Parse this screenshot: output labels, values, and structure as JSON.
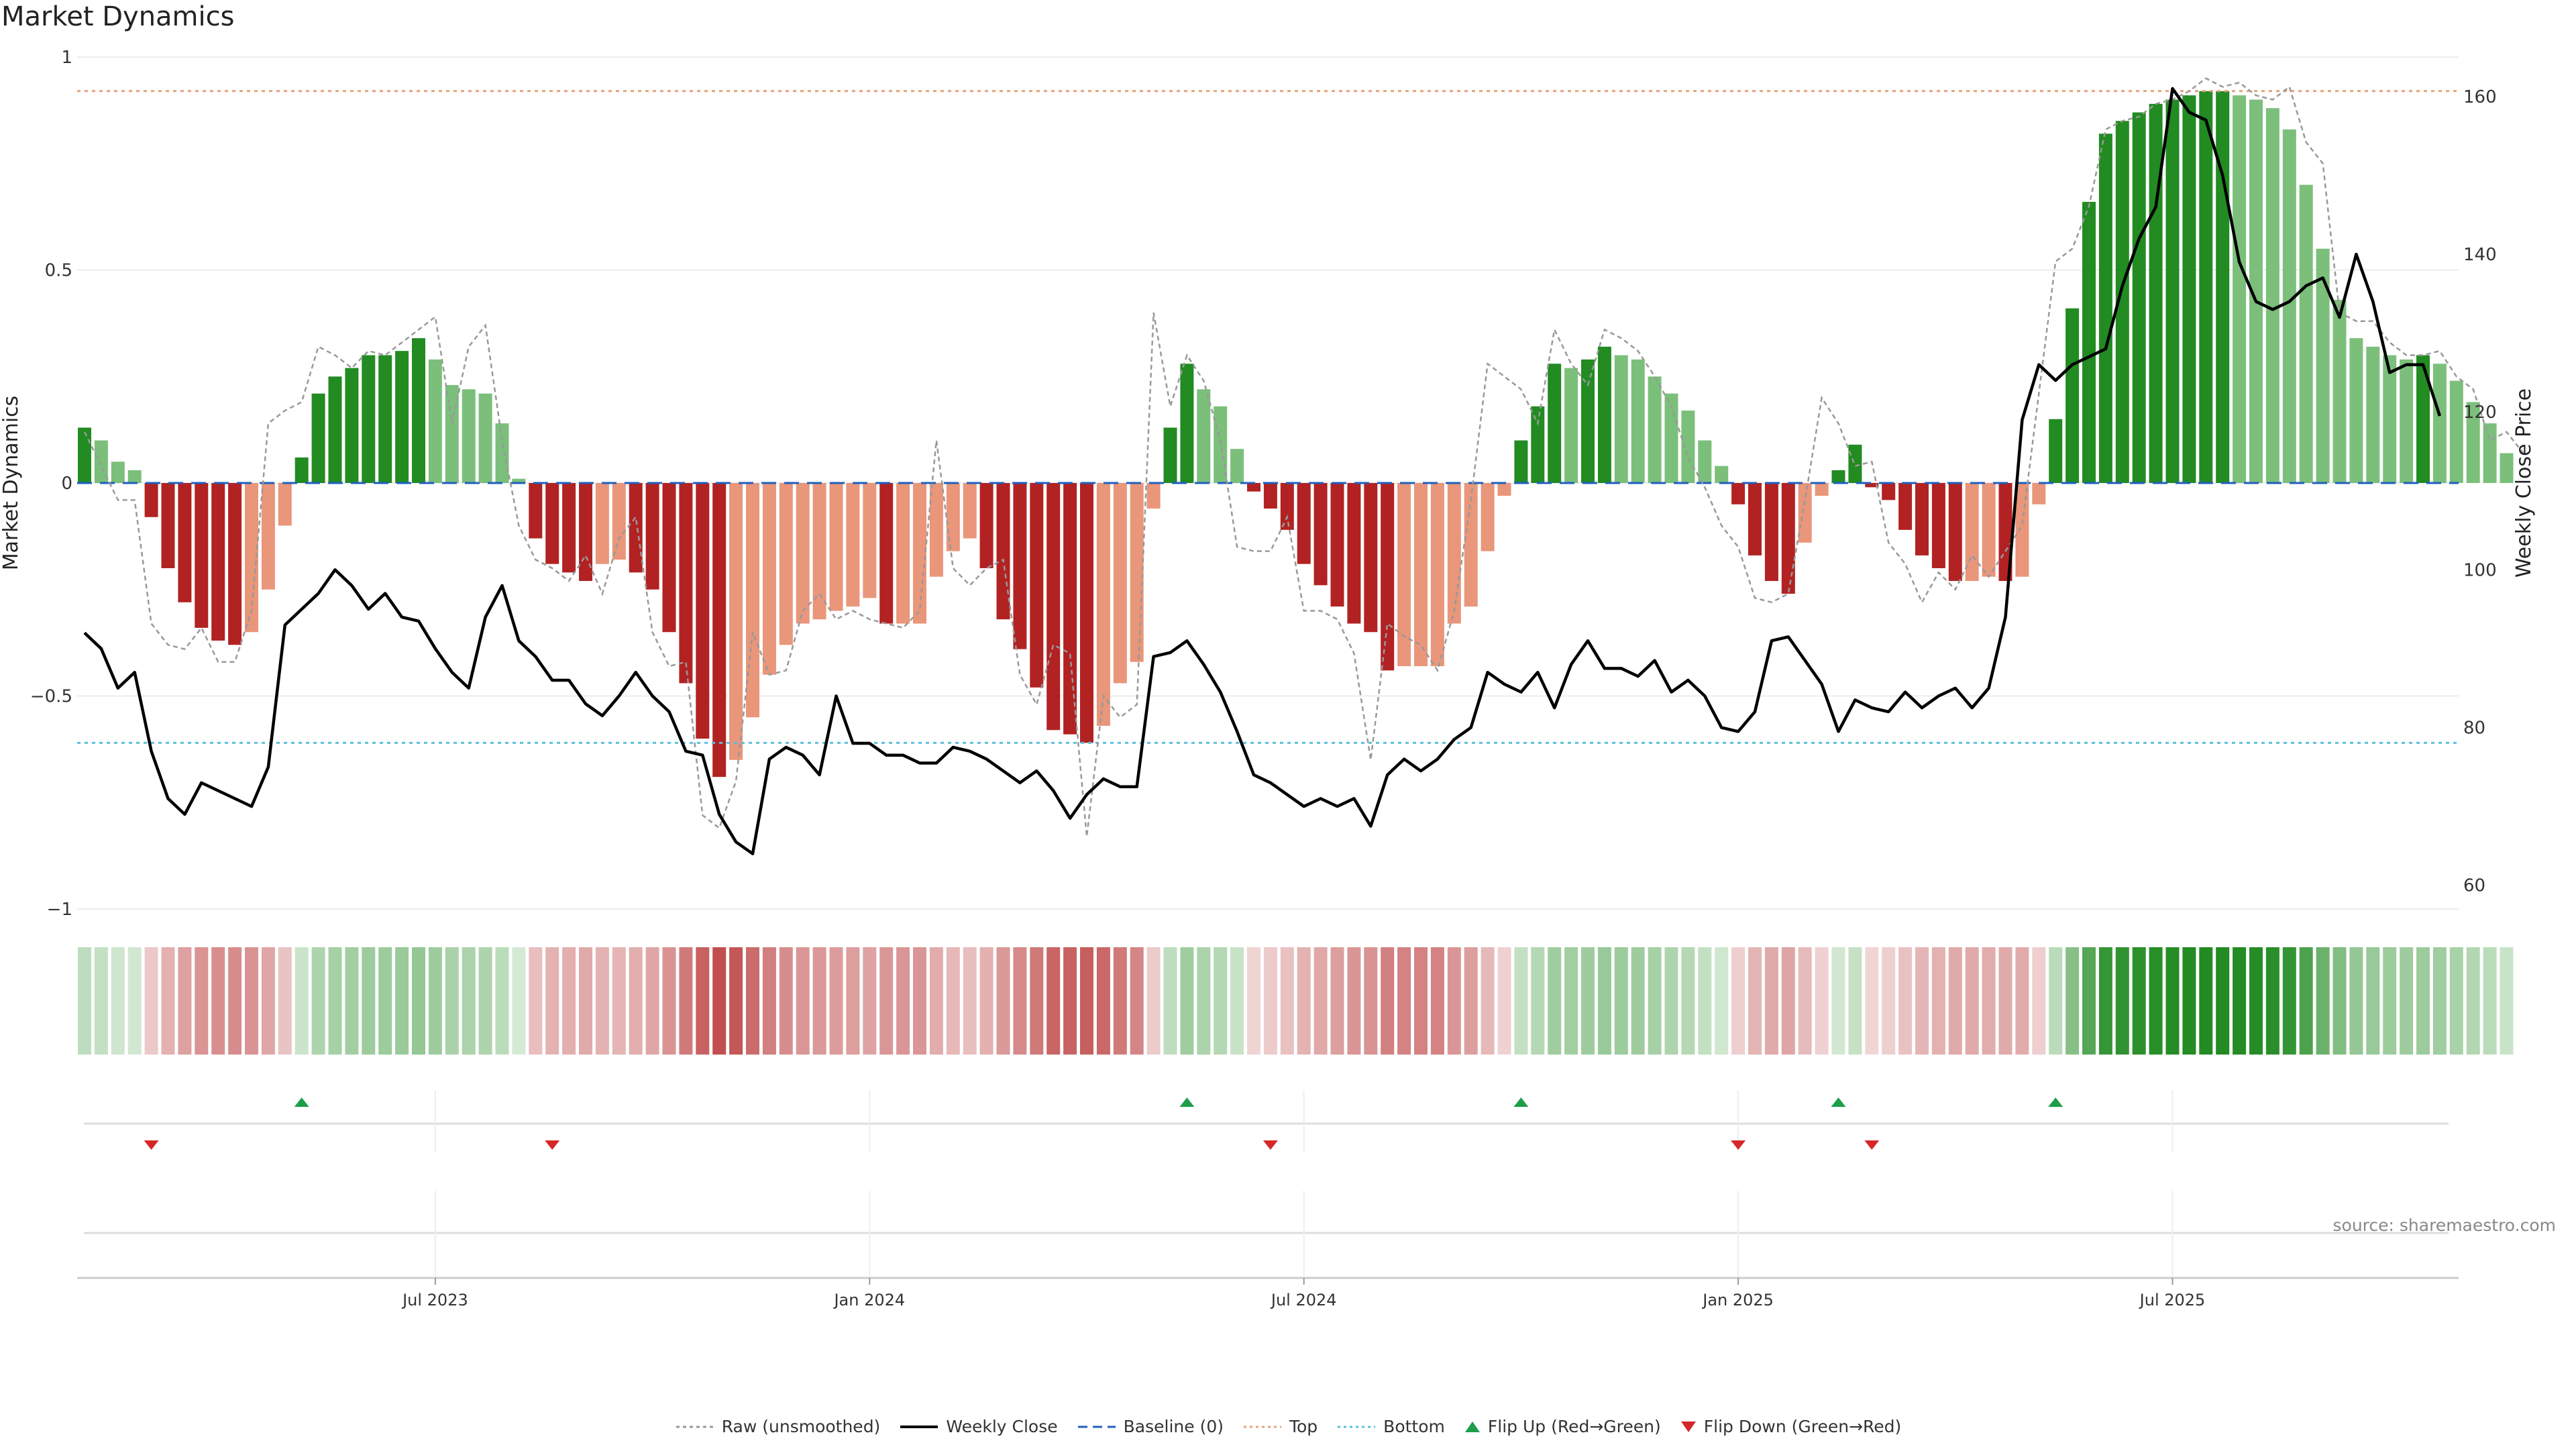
{
  "title": "Market Dynamics",
  "source": "source: sharemaestro.com",
  "colors": {
    "strong_green": "#228b22",
    "light_green": "#7bbf7b",
    "strong_red": "#b22222",
    "light_red": "#e9967a",
    "price": "#000000",
    "raw": "#999999",
    "baseline": "#1f5fbf",
    "top": "#e5a07a",
    "bottom": "#5bc0de",
    "flip_up": "#1e9e4a",
    "flip_down": "#d62728"
  },
  "legend": [
    {
      "label": "Raw (unsmoothed)",
      "icon": "raw-line-icon",
      "style": "dotted-grey"
    },
    {
      "label": "Weekly Close",
      "icon": "close-line-icon",
      "style": "solid-black"
    },
    {
      "label": "Baseline (0)",
      "icon": "baseline-line-icon",
      "style": "dashed-blue"
    },
    {
      "label": "Top",
      "icon": "top-line-icon",
      "style": "dotted-orange"
    },
    {
      "label": "Bottom",
      "icon": "bottom-line-icon",
      "style": "dotted-cyan"
    },
    {
      "label": "Flip Up (Red→Green)",
      "icon": "triangle-up-icon",
      "style": "up"
    },
    {
      "label": "Flip Down (Green→Red)",
      "icon": "triangle-down-icon",
      "style": "down"
    }
  ],
  "chart_data": {
    "type": "bar",
    "title": "Market Dynamics",
    "ylabel": "Market Dynamics",
    "y2label": "Weekly Close Price",
    "ylim": [
      -1,
      1
    ],
    "y2lim": [
      57,
      165
    ],
    "yticks": [
      1,
      0.5,
      0,
      -0.5,
      -1
    ],
    "ytick_labels": [
      "1",
      "0.5",
      "0",
      "−0.5",
      "−1"
    ],
    "y2ticks": [
      160,
      140,
      120,
      100,
      80,
      60
    ],
    "x_labels": [
      {
        "label": "Jul 2023",
        "week": 21
      },
      {
        "label": "Jan 2024",
        "week": 47
      },
      {
        "label": "Jul 2024",
        "week": 73
      },
      {
        "label": "Jan 2025",
        "week": 99
      },
      {
        "label": "Jul 2025",
        "week": 125
      }
    ],
    "top_threshold": 0.92,
    "bottom_threshold": -0.61,
    "baseline": 0,
    "flip_up_weeks": [
      13,
      66,
      86,
      105,
      118
    ],
    "flip_down_weeks": [
      4,
      28,
      71,
      99,
      107
    ],
    "series": [
      {
        "name": "Market Dynamics (bars)",
        "values": [
          0.13,
          0.1,
          0.05,
          0.03,
          -0.08,
          -0.2,
          -0.28,
          -0.34,
          -0.37,
          -0.38,
          -0.35,
          -0.25,
          -0.1,
          0.06,
          0.21,
          0.25,
          0.27,
          0.3,
          0.3,
          0.31,
          0.34,
          0.29,
          0.23,
          0.22,
          0.21,
          0.14,
          0.01,
          -0.13,
          -0.19,
          -0.21,
          -0.23,
          -0.19,
          -0.18,
          -0.21,
          -0.25,
          -0.35,
          -0.47,
          -0.6,
          -0.69,
          -0.65,
          -0.55,
          -0.45,
          -0.38,
          -0.33,
          -0.32,
          -0.3,
          -0.29,
          -0.27,
          -0.33,
          -0.33,
          -0.33,
          -0.22,
          -0.16,
          -0.13,
          -0.2,
          -0.32,
          -0.39,
          -0.48,
          -0.58,
          -0.59,
          -0.61,
          -0.57,
          -0.47,
          -0.42,
          -0.06,
          0.13,
          0.28,
          0.22,
          0.18,
          0.08,
          -0.02,
          -0.06,
          -0.11,
          -0.19,
          -0.24,
          -0.29,
          -0.33,
          -0.35,
          -0.44,
          -0.43,
          -0.43,
          -0.43,
          -0.33,
          -0.29,
          -0.16,
          -0.03,
          0.1,
          0.18,
          0.28,
          0.27,
          0.29,
          0.32,
          0.3,
          0.29,
          0.25,
          0.21,
          0.17,
          0.1,
          0.04,
          -0.05,
          -0.17,
          -0.23,
          -0.26,
          -0.14,
          -0.03,
          0.03,
          0.09,
          -0.01,
          -0.04,
          -0.11,
          -0.17,
          -0.2,
          -0.23,
          -0.23,
          -0.22,
          -0.23,
          -0.22,
          -0.05,
          0.15,
          0.41,
          0.66,
          0.82,
          0.85,
          0.87,
          0.89,
          0.9,
          0.91,
          0.92,
          0.92,
          0.91,
          0.9,
          0.88,
          0.83,
          0.7,
          0.55,
          0.43,
          0.34,
          0.32,
          0.3,
          0.29,
          0.3,
          0.28,
          0.24,
          0.19,
          0.14,
          0.07
        ]
      },
      {
        "name": "Raw (unsmoothed)",
        "values": [
          0.12,
          0.04,
          -0.04,
          -0.04,
          -0.33,
          -0.38,
          -0.39,
          -0.34,
          -0.42,
          -0.42,
          -0.3,
          0.14,
          0.17,
          0.19,
          0.32,
          0.3,
          0.27,
          0.31,
          0.3,
          0.33,
          0.36,
          0.39,
          0.14,
          0.32,
          0.37,
          0.1,
          -0.1,
          -0.18,
          -0.2,
          -0.23,
          -0.17,
          -0.26,
          -0.13,
          -0.08,
          -0.35,
          -0.43,
          -0.42,
          -0.78,
          -0.81,
          -0.7,
          -0.35,
          -0.45,
          -0.44,
          -0.3,
          -0.26,
          -0.32,
          -0.3,
          -0.32,
          -0.33,
          -0.34,
          -0.3,
          0.1,
          -0.2,
          -0.24,
          -0.2,
          -0.18,
          -0.45,
          -0.52,
          -0.38,
          -0.4,
          -0.83,
          -0.5,
          -0.55,
          -0.52,
          0.4,
          0.18,
          0.3,
          0.24,
          0.1,
          -0.15,
          -0.16,
          -0.16,
          -0.08,
          -0.3,
          -0.3,
          -0.32,
          -0.4,
          -0.65,
          -0.33,
          -0.36,
          -0.38,
          -0.44,
          -0.3,
          -0.04,
          0.28,
          0.25,
          0.22,
          0.14,
          0.36,
          0.28,
          0.23,
          0.36,
          0.34,
          0.31,
          0.25,
          0.18,
          0.06,
          -0.01,
          -0.1,
          -0.15,
          -0.27,
          -0.28,
          -0.26,
          -0.04,
          0.2,
          0.14,
          0.04,
          0.05,
          -0.14,
          -0.19,
          -0.28,
          -0.21,
          -0.25,
          -0.17,
          -0.22,
          -0.16,
          -0.1,
          0.21,
          0.52,
          0.55,
          0.65,
          0.83,
          0.85,
          0.86,
          0.89,
          0.9,
          0.92,
          0.95,
          0.93,
          0.94,
          0.91,
          0.9,
          0.93,
          0.8,
          0.75,
          0.4,
          0.38,
          0.38,
          0.33,
          0.3,
          0.3,
          0.31,
          0.25,
          0.22,
          0.1,
          0.12,
          0.07
        ]
      },
      {
        "name": "Weekly Close",
        "values": [
          92,
          90,
          85,
          87,
          77,
          71,
          69,
          73,
          72,
          71,
          70,
          75,
          93,
          95,
          97,
          100,
          98,
          95,
          97,
          94,
          93.5,
          90,
          87,
          85,
          94,
          98,
          91,
          89,
          86,
          86,
          83,
          81.5,
          84,
          87,
          84,
          82,
          77,
          76.5,
          69,
          65.5,
          64,
          76,
          77.5,
          76.5,
          74,
          84,
          78,
          78,
          76.5,
          76.5,
          75.5,
          75.5,
          77.5,
          77,
          76,
          74.5,
          73,
          74.5,
          72,
          68.5,
          71.5,
          73.5,
          72.5,
          72.5,
          89,
          89.5,
          91,
          88,
          84.5,
          79.5,
          74,
          73,
          71.5,
          70,
          71,
          70,
          71,
          67.5,
          74,
          76,
          74.5,
          76,
          78.5,
          80,
          87,
          85.5,
          84.5,
          87,
          82.5,
          88,
          91,
          87.5,
          87.5,
          86.5,
          88.5,
          84.5,
          86,
          84,
          80,
          79.5,
          82,
          91,
          91.5,
          88.5,
          85.5,
          79.5,
          83.5,
          82.5,
          82,
          84.5,
          82.5,
          84,
          85,
          82.5,
          85,
          94,
          119,
          126,
          124,
          126,
          127,
          128,
          136,
          142,
          146,
          161,
          158,
          157,
          150,
          139,
          134,
          133,
          134,
          136,
          137,
          132,
          140,
          134,
          125,
          126,
          126,
          119.5
        ]
      }
    ]
  }
}
